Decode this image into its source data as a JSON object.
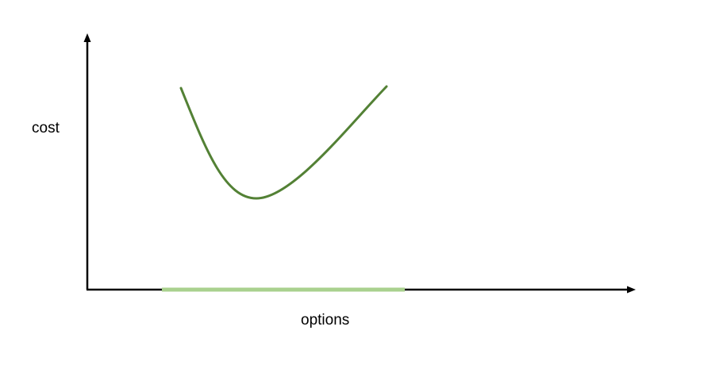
{
  "labels": {
    "y_axis": "cost",
    "x_axis": "options"
  },
  "colors": {
    "axis": "#000000",
    "curve": "#538135",
    "range_band": "#a9d18e",
    "background": "#ffffff"
  }
}
